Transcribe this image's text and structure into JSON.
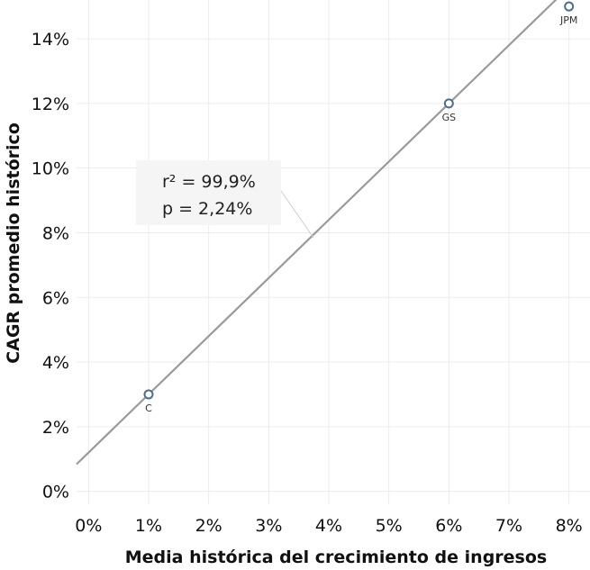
{
  "chart_data": {
    "type": "scatter",
    "xlabel": "Media histórica del crecimiento de ingresos",
    "ylabel": "CAGR promedio histórico",
    "x_ticks": [
      "0%",
      "1%",
      "2%",
      "3%",
      "4%",
      "5%",
      "6%",
      "7%",
      "8%"
    ],
    "y_ticks": [
      "0%",
      "2%",
      "4%",
      "6%",
      "8%",
      "10%",
      "12%",
      "14%"
    ],
    "xlim": [
      -0.2,
      8.35
    ],
    "ylim": [
      -0.4,
      15.2
    ],
    "grid": true,
    "points": [
      {
        "label": "C",
        "x": 1.0,
        "y": 3.0
      },
      {
        "label": "GS",
        "x": 6.0,
        "y": 12.0
      },
      {
        "label": "JPM",
        "x": 8.0,
        "y": 15.0
      }
    ],
    "trend_line": {
      "slope": 1.8,
      "intercept": 1.2
    },
    "annotation": {
      "line1": "r² = 99,9%",
      "line2": "p  = 2,24%"
    },
    "colors": {
      "marker": "#4e6e8e",
      "trend": "#9a9a9a",
      "grid": "#ececec",
      "annotation_bg": "#f5f5f5"
    }
  }
}
